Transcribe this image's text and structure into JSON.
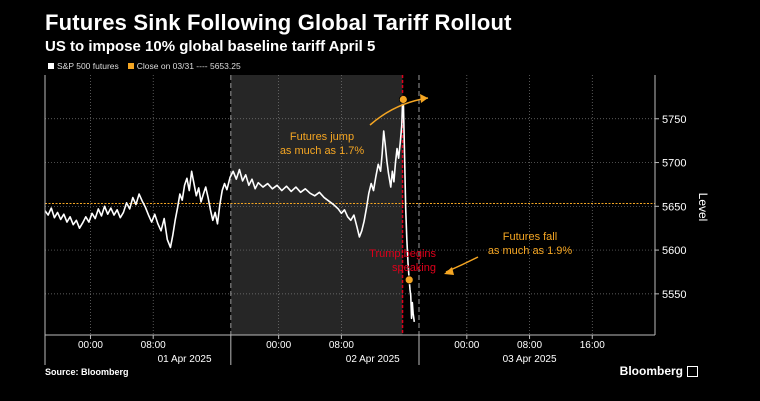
{
  "header": {
    "title": "Futures Sink Following Global Tariff Rollout",
    "subtitle": "US to impose 10% global baseline tariff April 5"
  },
  "legend": {
    "series_label": "S&P 500 futures",
    "close_label": "Close on 03/31 ---- 5653.25"
  },
  "footer": {
    "source": "Source: Bloomberg",
    "brand": "Bloomberg"
  },
  "colors": {
    "background": "#000000",
    "series": "#ffffff",
    "close_line": "#f5a623",
    "event_line": "#e0001b",
    "annotation": "#f5a623",
    "shade": "#262626"
  },
  "chart_data": {
    "type": "line",
    "ylabel": "Level",
    "ylim": [
      5503,
      5800
    ],
    "yticks": [
      5550,
      5600,
      5650,
      5700,
      5750
    ],
    "x_days": [
      "01 Apr 2025",
      "02 Apr 2025",
      "03 Apr 2025"
    ],
    "x_time_ticks": [
      {
        "t": 0,
        "label": "00:00"
      },
      {
        "t": 8,
        "label": "08:00"
      },
      {
        "t": 24,
        "label": "00:00"
      },
      {
        "t": 32,
        "label": "08:00"
      },
      {
        "t": 48,
        "label": "00:00"
      },
      {
        "t": 56,
        "label": "08:00"
      },
      {
        "t": 64,
        "label": "16:00"
      }
    ],
    "xlim_hours": [
      -5.8,
      72
    ],
    "session_breaks_hours": [
      17.9,
      41.9
    ],
    "shaded_range_hours": [
      17.9,
      39.8
    ],
    "close_value": 5653.25,
    "event_time_hours": 39.8,
    "series": [
      {
        "name": "S&P 500 futures",
        "points": [
          [
            -5.8,
            5645
          ],
          [
            -5.4,
            5640
          ],
          [
            -5.0,
            5648
          ],
          [
            -4.6,
            5637
          ],
          [
            -4.2,
            5643
          ],
          [
            -3.8,
            5635
          ],
          [
            -3.4,
            5641
          ],
          [
            -3.0,
            5632
          ],
          [
            -2.6,
            5638
          ],
          [
            -2.2,
            5629
          ],
          [
            -1.8,
            5634
          ],
          [
            -1.4,
            5625
          ],
          [
            -1.0,
            5631
          ],
          [
            -0.6,
            5638
          ],
          [
            -0.2,
            5632
          ],
          [
            0.2,
            5642
          ],
          [
            0.6,
            5636
          ],
          [
            1.0,
            5647
          ],
          [
            1.4,
            5639
          ],
          [
            1.8,
            5650
          ],
          [
            2.2,
            5641
          ],
          [
            2.6,
            5648
          ],
          [
            3.0,
            5640
          ],
          [
            3.4,
            5646
          ],
          [
            3.8,
            5637
          ],
          [
            4.2,
            5643
          ],
          [
            4.6,
            5654
          ],
          [
            5.0,
            5647
          ],
          [
            5.4,
            5660
          ],
          [
            5.8,
            5652
          ],
          [
            6.2,
            5664
          ],
          [
            6.6,
            5656
          ],
          [
            7.0,
            5649
          ],
          [
            7.4,
            5640
          ],
          [
            7.8,
            5632
          ],
          [
            8.2,
            5641
          ],
          [
            8.6,
            5630
          ],
          [
            9.0,
            5622
          ],
          [
            9.4,
            5636
          ],
          [
            9.8,
            5612
          ],
          [
            10.2,
            5603
          ],
          [
            10.5,
            5617
          ],
          [
            10.8,
            5634
          ],
          [
            11.1,
            5648
          ],
          [
            11.4,
            5664
          ],
          [
            11.7,
            5657
          ],
          [
            12.0,
            5674
          ],
          [
            12.3,
            5682
          ],
          [
            12.6,
            5668
          ],
          [
            12.9,
            5690
          ],
          [
            13.2,
            5676
          ],
          [
            13.5,
            5662
          ],
          [
            13.8,
            5671
          ],
          [
            14.1,
            5655
          ],
          [
            14.4,
            5664
          ],
          [
            14.7,
            5672
          ],
          [
            15.0,
            5660
          ],
          [
            15.3,
            5646
          ],
          [
            15.6,
            5634
          ],
          [
            15.9,
            5643
          ],
          [
            16.2,
            5630
          ],
          [
            16.5,
            5652
          ],
          [
            16.8,
            5668
          ],
          [
            17.1,
            5676
          ],
          [
            17.4,
            5669
          ],
          [
            17.8,
            5683
          ],
          [
            18.2,
            5690
          ],
          [
            18.6,
            5681
          ],
          [
            19.0,
            5692
          ],
          [
            19.4,
            5679
          ],
          [
            19.8,
            5686
          ],
          [
            20.2,
            5674
          ],
          [
            20.6,
            5681
          ],
          [
            21.0,
            5670
          ],
          [
            21.4,
            5677
          ],
          [
            22.0,
            5672
          ],
          [
            22.6,
            5676
          ],
          [
            23.2,
            5670
          ],
          [
            23.8,
            5674
          ],
          [
            24.4,
            5668
          ],
          [
            25.0,
            5673
          ],
          [
            25.6,
            5667
          ],
          [
            26.2,
            5672
          ],
          [
            26.8,
            5666
          ],
          [
            27.4,
            5670
          ],
          [
            28.0,
            5665
          ],
          [
            28.6,
            5662
          ],
          [
            29.2,
            5666
          ],
          [
            29.8,
            5660
          ],
          [
            30.4,
            5656
          ],
          [
            31.0,
            5652
          ],
          [
            31.6,
            5647
          ],
          [
            32.0,
            5642
          ],
          [
            32.4,
            5646
          ],
          [
            32.8,
            5638
          ],
          [
            33.2,
            5634
          ],
          [
            33.6,
            5640
          ],
          [
            34.0,
            5626
          ],
          [
            34.3,
            5615
          ],
          [
            34.6,
            5622
          ],
          [
            34.9,
            5633
          ],
          [
            35.2,
            5648
          ],
          [
            35.5,
            5665
          ],
          [
            35.8,
            5676
          ],
          [
            36.1,
            5668
          ],
          [
            36.4,
            5684
          ],
          [
            36.7,
            5698
          ],
          [
            37.0,
            5690
          ],
          [
            37.2,
            5710
          ],
          [
            37.4,
            5736
          ],
          [
            37.6,
            5720
          ],
          [
            37.8,
            5702
          ],
          [
            38.0,
            5688
          ],
          [
            38.3,
            5672
          ],
          [
            38.5,
            5690
          ],
          [
            38.7,
            5678
          ],
          [
            38.9,
            5700
          ],
          [
            39.1,
            5716
          ],
          [
            39.3,
            5705
          ],
          [
            39.5,
            5722
          ],
          [
            39.7,
            5742
          ],
          [
            39.8,
            5768
          ],
          [
            39.9,
            5772
          ],
          [
            40.05,
            5712
          ],
          [
            40.2,
            5648
          ],
          [
            40.35,
            5612
          ],
          [
            40.5,
            5585
          ],
          [
            40.65,
            5566
          ],
          [
            40.75,
            5555
          ],
          [
            40.85,
            5548
          ],
          [
            40.95,
            5522
          ],
          [
            41.05,
            5540
          ],
          [
            41.15,
            5528
          ],
          [
            41.3,
            5518
          ]
        ]
      }
    ],
    "markers": [
      {
        "x": 39.9,
        "y": 5772
      },
      {
        "x": 40.65,
        "y": 5566
      }
    ],
    "annotations": [
      {
        "text": [
          "Futures jump",
          "as much as 1.7%"
        ],
        "color": "annotation"
      },
      {
        "text": [
          "Futures fall",
          "as much as 1.9%"
        ],
        "color": "annotation"
      },
      {
        "text": [
          "Trump begins",
          "speaking"
        ],
        "color": "event_line"
      }
    ]
  }
}
